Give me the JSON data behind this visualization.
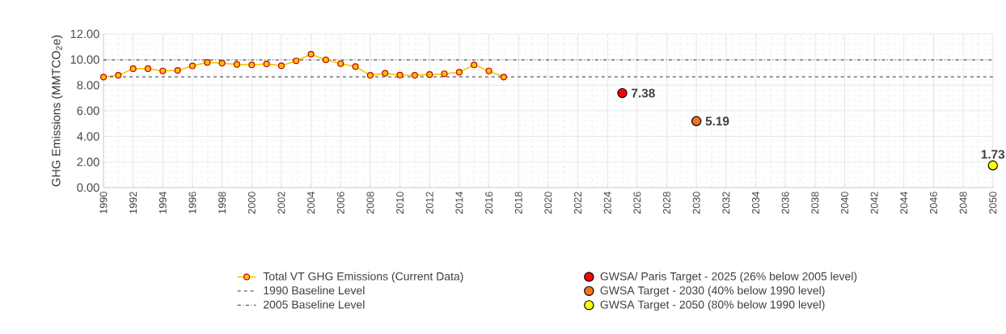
{
  "chart_data": {
    "type": "line",
    "ylabel": "GHG Emissions (MMTCO$_{2}$e)",
    "xlim": [
      1990,
      2050
    ],
    "xticks": [
      1990,
      1992,
      1994,
      1996,
      1998,
      2000,
      2002,
      2004,
      2006,
      2008,
      2010,
      2012,
      2014,
      2016,
      2018,
      2020,
      2022,
      2024,
      2026,
      2028,
      2030,
      2032,
      2034,
      2036,
      2038,
      2040,
      2042,
      2044,
      2046,
      2048,
      2050
    ],
    "ylim": [
      0,
      12
    ],
    "yticks": [
      {
        "value": 0,
        "label": "0.00"
      },
      {
        "value": 2,
        "label": "2.00"
      },
      {
        "value": 4,
        "label": "4.00"
      },
      {
        "value": 6,
        "label": "6.00"
      },
      {
        "value": 8,
        "label": "8.00"
      },
      {
        "value": 10,
        "label": "10.00"
      },
      {
        "value": 12,
        "label": "12.00"
      }
    ],
    "grid": true,
    "legend": "bottom",
    "marker": "circle",
    "series": [
      {
        "name": "Total VT GHG Emissions (Current Data)",
        "color": "#ffc000",
        "x": [
          1990,
          1991,
          1992,
          1993,
          1994,
          1995,
          1996,
          1997,
          1998,
          1999,
          2000,
          2001,
          2002,
          2003,
          2004,
          2005,
          2006,
          2007,
          2008,
          2009,
          2010,
          2011,
          2012,
          2013,
          2014,
          2015,
          2016,
          2017
        ],
        "values": [
          8.63,
          8.77,
          9.29,
          9.29,
          9.11,
          9.15,
          9.5,
          9.78,
          9.72,
          9.62,
          9.58,
          9.66,
          9.52,
          9.9,
          10.42,
          9.98,
          9.68,
          9.45,
          8.77,
          8.93,
          8.79,
          8.77,
          8.83,
          8.89,
          9.01,
          9.58,
          9.11,
          8.63
        ]
      },
      {
        "name": "GWSA/ Paris Target - 2025 (26% below 2005 level)",
        "type": "scatter",
        "color": "#ff0000",
        "x": [
          2025
        ],
        "values": [
          7.38
        ],
        "value_labels": [
          "7.38"
        ]
      },
      {
        "name": "GWSA Target - 2030 (40% below 1990 level)",
        "type": "scatter",
        "color": "#f47320",
        "x": [
          2030
        ],
        "values": [
          5.19
        ],
        "value_labels": [
          "5.19"
        ]
      },
      {
        "name": "GWSA Target - 2050 (80% below 1990 level)",
        "type": "scatter",
        "color": "#ffff00",
        "x": [
          2050
        ],
        "values": [
          1.73
        ],
        "value_labels": [
          "1.73"
        ]
      }
    ],
    "ref_lines": [
      {
        "axis": "y",
        "value": 8.65,
        "label": "1990 Baseline Level",
        "line_style": "dashed",
        "color": "#000000"
      },
      {
        "axis": "y",
        "value": 9.97,
        "label": "2005 Baseline Level",
        "line_style": "dashdot",
        "color": "#000000"
      }
    ]
  }
}
